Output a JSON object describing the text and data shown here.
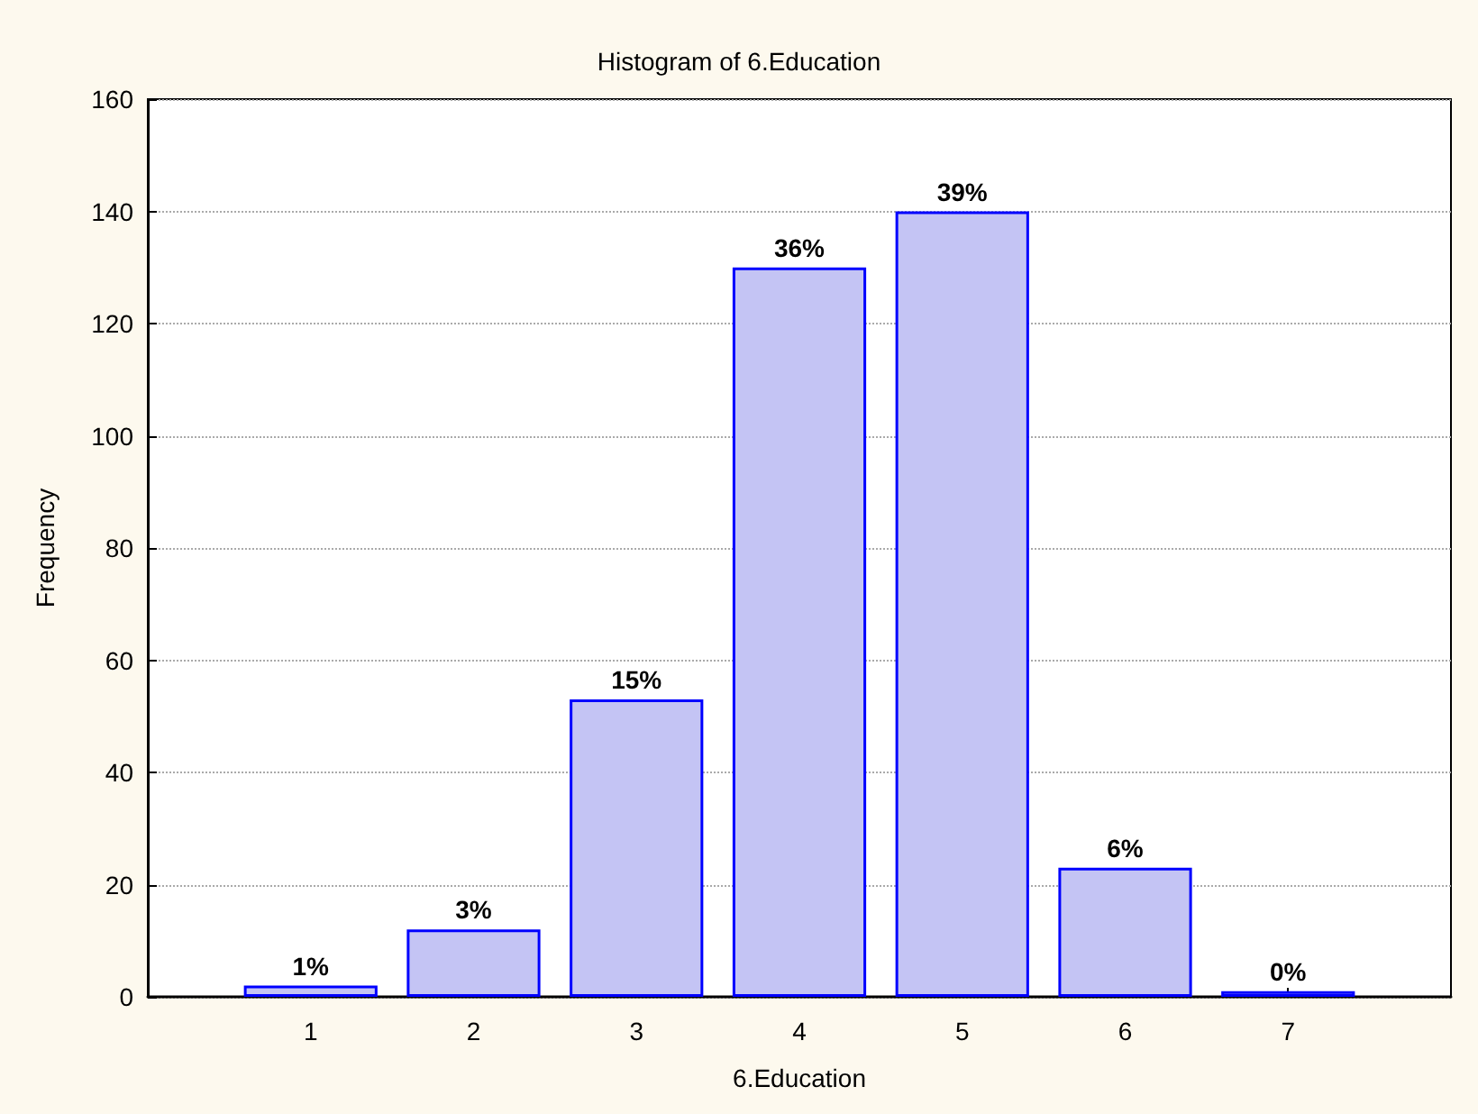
{
  "chart_data": {
    "type": "bar",
    "title": "Histogram of 6.Education",
    "xlabel": "6.Education",
    "ylabel": "Frequency",
    "x": [
      1,
      2,
      3,
      4,
      5,
      6,
      7
    ],
    "values": [
      2,
      12,
      53,
      130,
      140,
      23,
      1
    ],
    "annotations": [
      {
        "text": "1%",
        "x": 1,
        "y": 2
      },
      {
        "text": "3%",
        "x": 2,
        "y": 12
      },
      {
        "text": "15%",
        "x": 3,
        "y": 53
      },
      {
        "text": "36%",
        "x": 4,
        "y": 130
      },
      {
        "text": "39%",
        "x": 5,
        "y": 140
      },
      {
        "text": "6%",
        "x": 6,
        "y": 23
      },
      {
        "text": "0%",
        "x": 7,
        "y": 1
      }
    ],
    "color": "#c4c4f4",
    "xlim": [
      0,
      8
    ],
    "xticks": [
      1,
      2,
      3,
      4,
      5,
      6,
      7
    ],
    "ylim": [
      0,
      160
    ],
    "yticks": [
      0,
      20,
      40,
      60,
      80,
      100,
      120,
      140,
      160
    ],
    "grid": "y"
  }
}
